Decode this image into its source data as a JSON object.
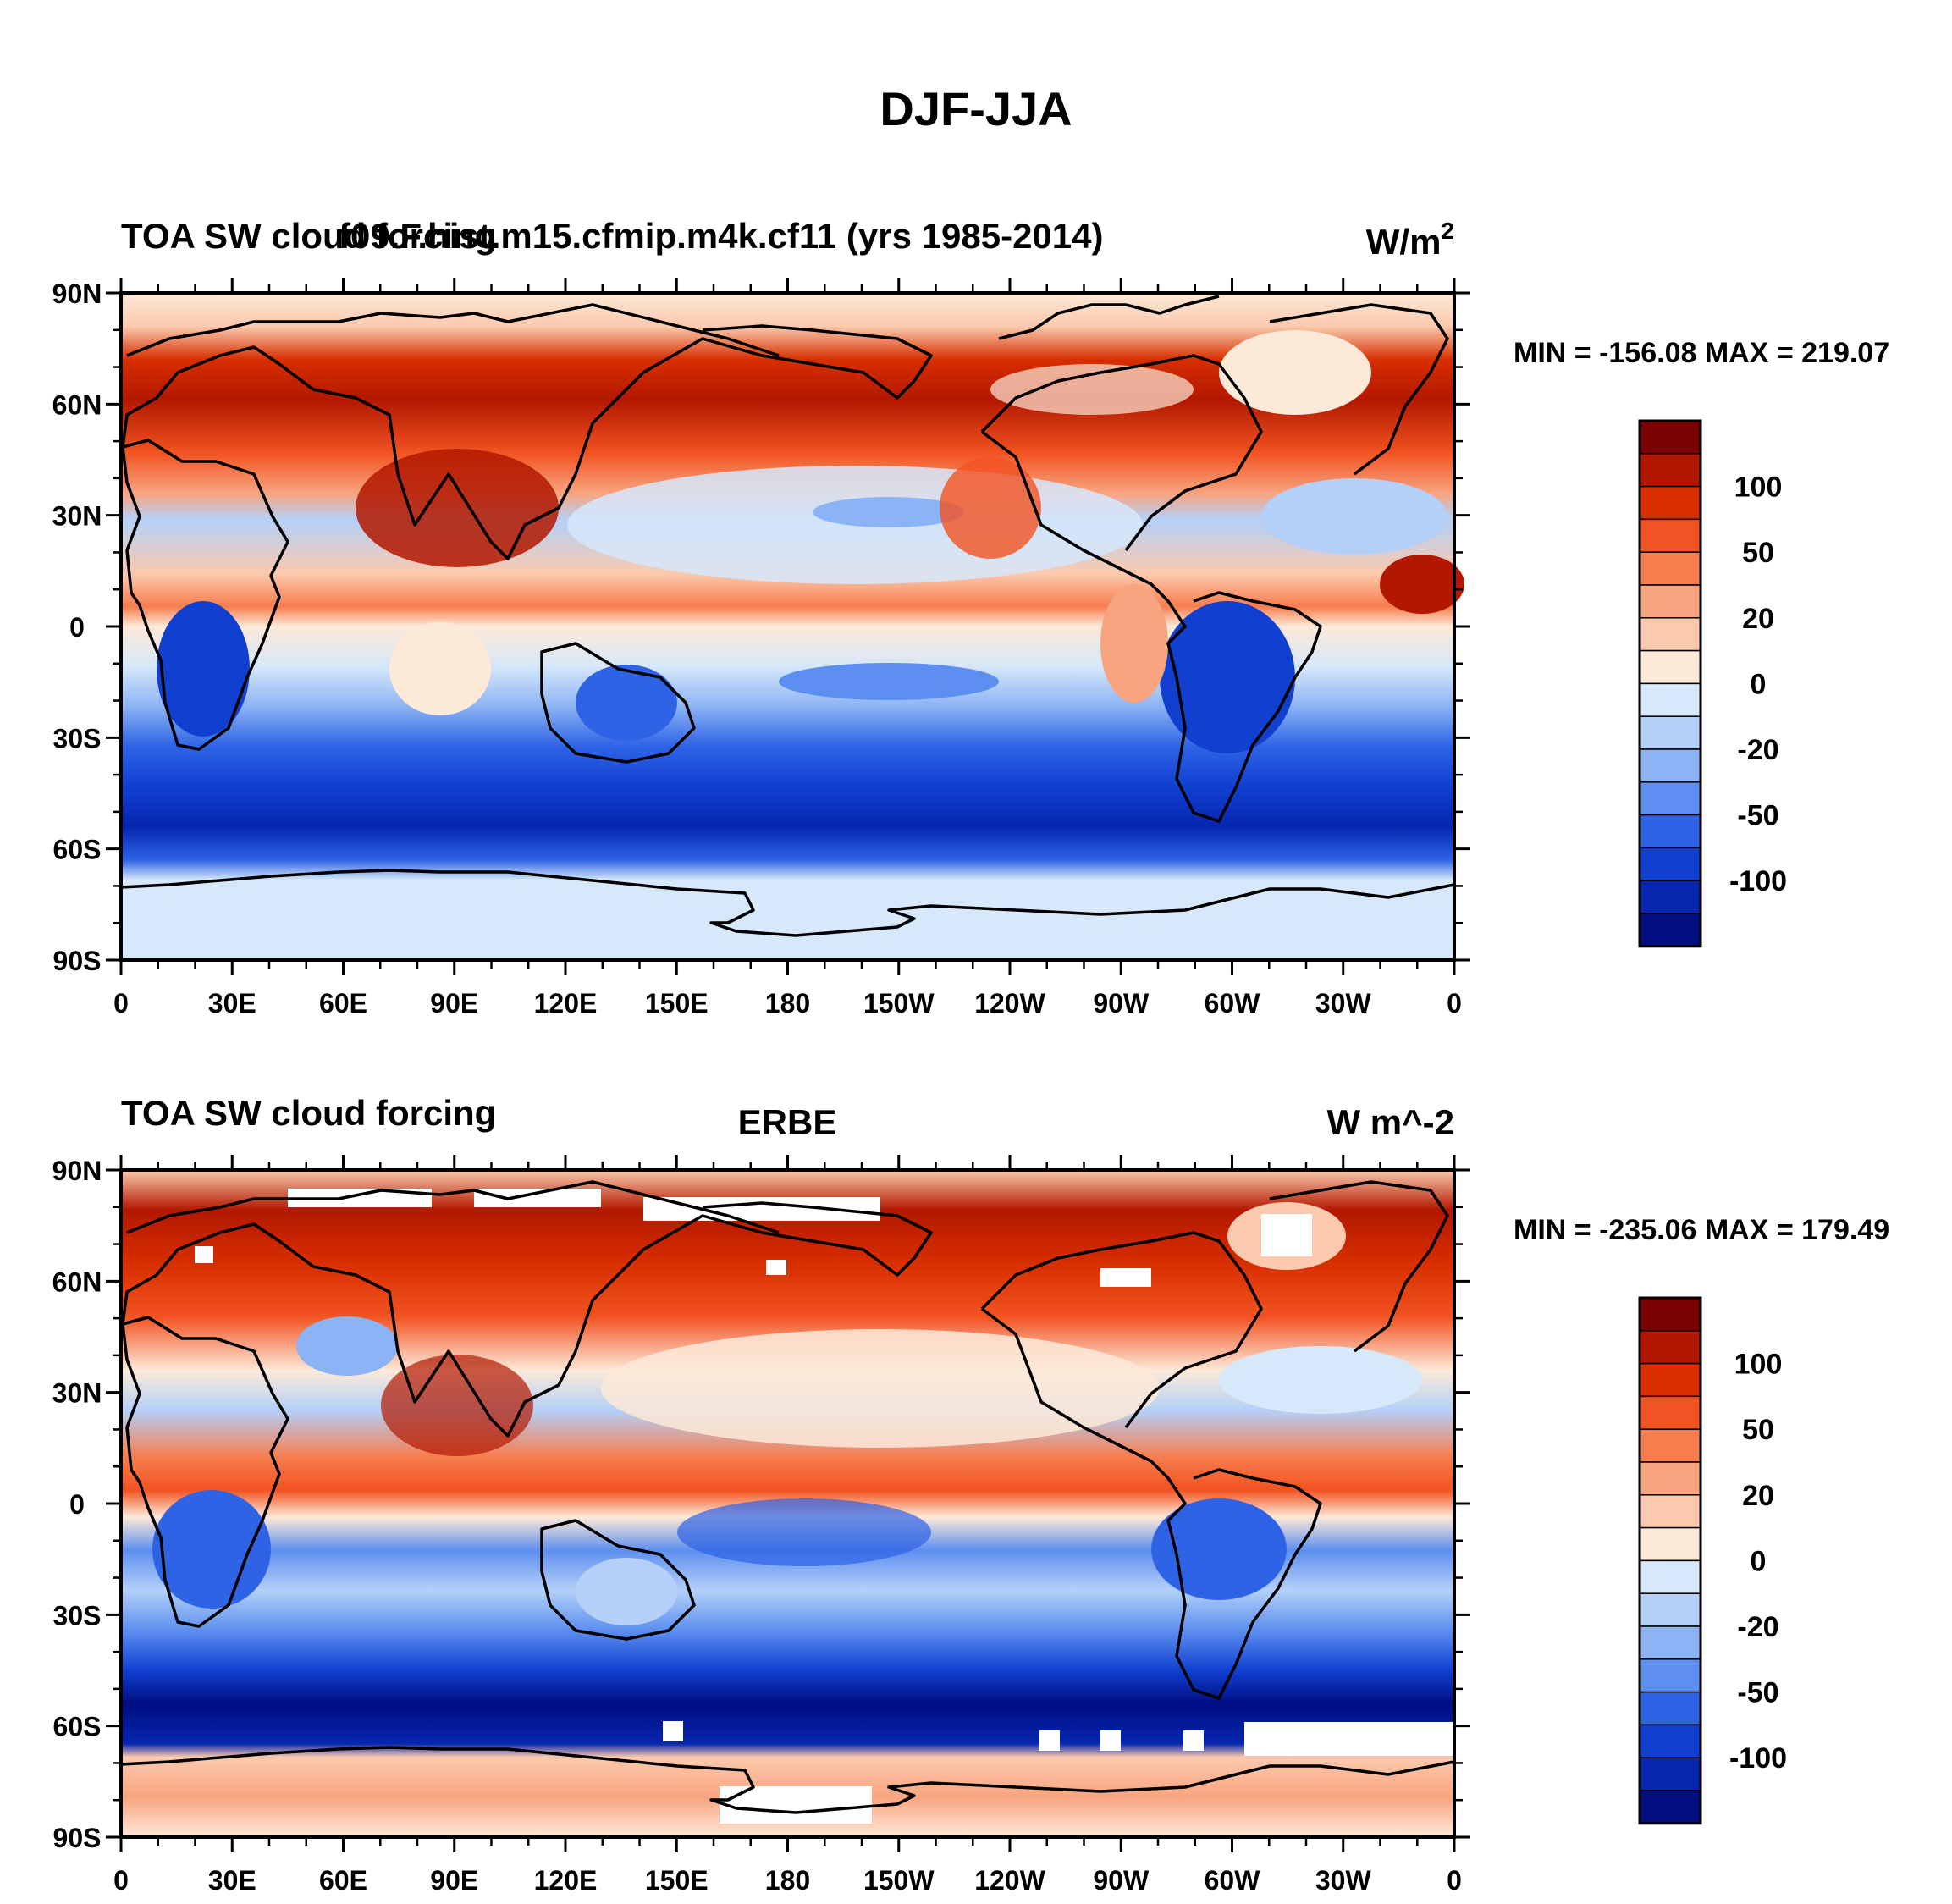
{
  "figure": {
    "title": "DJF-JJA"
  },
  "panels": [
    {
      "left_title": "TOA SW cloud forcing",
      "center_title": "f09.F.hist.m15.cfmip.m4k.cf11 (yrs 1985-2014)",
      "units": "W/m",
      "units_sup": "2",
      "stats": "MIN = -156.08 MAX = 219.07",
      "missing_data": false
    },
    {
      "left_title": "TOA SW cloud forcing",
      "center_title": "ERBE",
      "units": "W m^-2",
      "units_sup": "",
      "stats": "MIN = -235.06 MAX = 179.49",
      "missing_data": true
    }
  ],
  "chart_data": {
    "type": "heatmap",
    "variable": "TOA SW cloud forcing",
    "season_difference": "DJF-JJA",
    "x_ticks": [
      "0",
      "30E",
      "60E",
      "90E",
      "120E",
      "150E",
      "180",
      "150W",
      "120W",
      "90W",
      "60W",
      "30W",
      "0"
    ],
    "y_ticks": [
      "90N",
      "60N",
      "30N",
      "0",
      "30S",
      "60S",
      "90S"
    ],
    "x_range_deg": [
      0,
      360
    ],
    "y_range_deg": [
      -90,
      90
    ],
    "colorbar": {
      "labels": [
        "100",
        "50",
        "20",
        "0",
        "-20",
        "-50",
        "-100"
      ],
      "colors": [
        "#7b0000",
        "#b21800",
        "#d82e00",
        "#f25322",
        "#f77d4e",
        "#f8a47f",
        "#fbcaae",
        "#fde9d8",
        "#d6e8fa",
        "#b4d0f8",
        "#8cb3f4",
        "#5d8ff0",
        "#2e63e6",
        "#1140d1",
        "#0626ae",
        "#000e82"
      ]
    }
  }
}
